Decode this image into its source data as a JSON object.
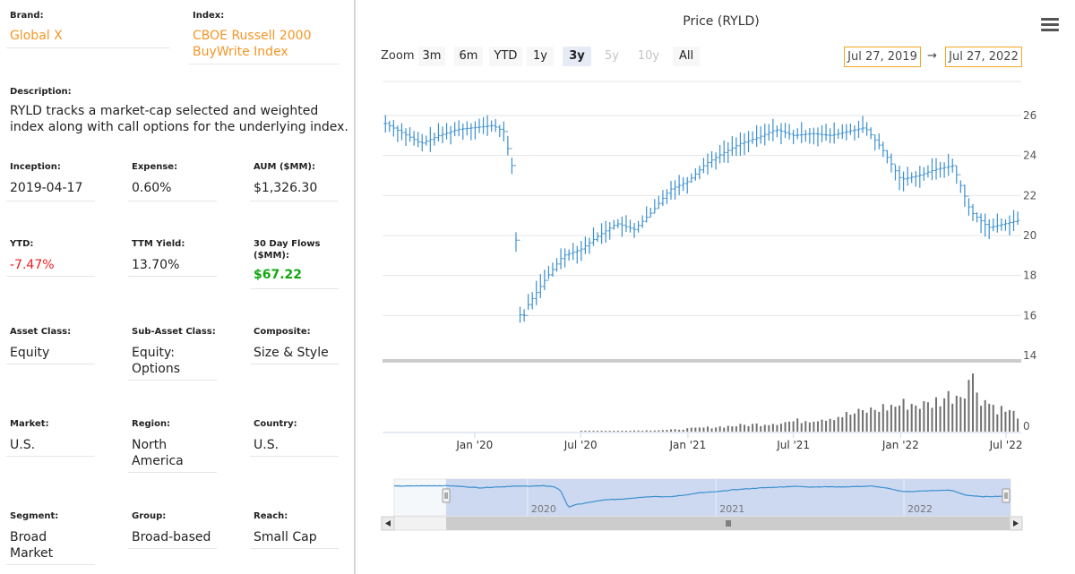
{
  "fund": {
    "brand": {
      "label": "Brand:",
      "value": "Global X"
    },
    "index": {
      "label": "Index:",
      "value_line1": "CBOE Russell 2000",
      "value_line2": "BuyWrite Index"
    },
    "description": {
      "label": "Description:",
      "line1": "RYLD tracks a market-cap selected and weighted",
      "line2": "index along with call options for the underlying index."
    },
    "inception": {
      "label": "Inception:",
      "value": "2019-04-17"
    },
    "expense": {
      "label": "Expense:",
      "value": "0.60%"
    },
    "aum": {
      "label": "AUM ($MM):",
      "value": "$1,326.30"
    },
    "ytd": {
      "label": "YTD:",
      "value": "-7.47%"
    },
    "ttm_yield": {
      "label": "TTM Yield:",
      "value": "13.70%"
    },
    "flows": {
      "label_line1": "30 Day Flows",
      "label_line2": "($MM):",
      "value": "$67.22"
    },
    "asset_class": {
      "label": "Asset Class:",
      "value": "Equity"
    },
    "sub_asset_class": {
      "label": "Sub-Asset Class:",
      "value_line1": "Equity:",
      "value_line2": "Options"
    },
    "composite": {
      "label": "Composite:",
      "value": "Size & Style"
    },
    "market": {
      "label": "Market:",
      "value": "U.S."
    },
    "region": {
      "label": "Region:",
      "value_line1": "North",
      "value_line2": "America"
    },
    "country": {
      "label": "Country:",
      "value": "U.S."
    },
    "segment": {
      "label": "Segment:",
      "value_line1": "Broad",
      "value_line2": "Market"
    },
    "group": {
      "label": "Group:",
      "value": "Broad-based"
    },
    "reach": {
      "label": "Reach:",
      "value": "Small Cap"
    }
  },
  "toolbar": {
    "zoom_label": "Zoom",
    "buttons": [
      {
        "label": "3m",
        "state": "normal"
      },
      {
        "label": "6m",
        "state": "normal"
      },
      {
        "label": "YTD",
        "state": "normal"
      },
      {
        "label": "1y",
        "state": "normal"
      },
      {
        "label": "3y",
        "state": "selected"
      },
      {
        "label": "5y",
        "state": "disabled"
      },
      {
        "label": "10y",
        "state": "disabled"
      },
      {
        "label": "All",
        "state": "normal"
      }
    ],
    "from_date": "Jul 27, 2019",
    "arrow": "→",
    "to_date": "Jul 27, 2022",
    "menu_icon": "hamburger-menu-icon"
  },
  "colors": {
    "price": "#3b8fcf",
    "volume": "#707070",
    "navigator_fill": "#c5d3ee",
    "navigator_line": "#3b8fcf",
    "orange": "#f59626",
    "red": "#ee1e1e",
    "green": "#11a811"
  },
  "chart_data": {
    "type": "line",
    "title": "Price (RYLD)",
    "price_axis": {
      "ticks": [
        14,
        16,
        18,
        20,
        22,
        24,
        26
      ],
      "range": [
        14,
        26.5
      ]
    },
    "volume_axis": {
      "ticks": [
        0
      ]
    },
    "x_ticks": [
      "Jan '20",
      "Jul '20",
      "Jan '21",
      "Jul '21",
      "Jan '22",
      "Jul '22"
    ],
    "navigator_labels": [
      "2020",
      "2021",
      "2022"
    ],
    "x_range": [
      "2019-07-27",
      "2022-07-27"
    ],
    "price_series": [
      [
        "2019-08-01",
        25.6
      ],
      [
        "2019-09-01",
        25.1
      ],
      [
        "2019-10-01",
        24.6
      ],
      [
        "2019-11-01",
        25.0
      ],
      [
        "2019-12-01",
        25.3
      ],
      [
        "2020-01-01",
        25.4
      ],
      [
        "2020-02-01",
        25.5
      ],
      [
        "2020-02-20",
        25.2
      ],
      [
        "2020-03-05",
        23.5
      ],
      [
        "2020-03-20",
        15.5
      ],
      [
        "2020-04-01",
        16.5
      ],
      [
        "2020-05-01",
        17.8
      ],
      [
        "2020-06-01",
        19.0
      ],
      [
        "2020-07-01",
        19.3
      ],
      [
        "2020-08-01",
        20.0
      ],
      [
        "2020-09-01",
        20.6
      ],
      [
        "2020-10-01",
        20.3
      ],
      [
        "2020-11-01",
        21.2
      ],
      [
        "2020-12-01",
        22.3
      ],
      [
        "2021-01-01",
        22.7
      ],
      [
        "2021-02-01",
        23.6
      ],
      [
        "2021-03-01",
        24.1
      ],
      [
        "2021-04-01",
        24.6
      ],
      [
        "2021-05-01",
        24.9
      ],
      [
        "2021-06-01",
        25.3
      ],
      [
        "2021-07-01",
        25.0
      ],
      [
        "2021-08-01",
        25.1
      ],
      [
        "2021-09-01",
        25.0
      ],
      [
        "2021-10-01",
        25.2
      ],
      [
        "2021-11-01",
        25.4
      ],
      [
        "2021-12-01",
        24.3
      ],
      [
        "2022-01-01",
        22.8
      ],
      [
        "2022-02-01",
        23.0
      ],
      [
        "2022-03-01",
        23.3
      ],
      [
        "2022-04-01",
        23.5
      ],
      [
        "2022-05-01",
        21.2
      ],
      [
        "2022-06-01",
        20.4
      ],
      [
        "2022-07-01",
        20.6
      ],
      [
        "2022-07-27",
        20.8
      ]
    ],
    "volume_series": [
      [
        "2019-08-01",
        0
      ],
      [
        "2020-06-01",
        0
      ],
      [
        "2020-12-01",
        0.03
      ],
      [
        "2021-01-15",
        0.06
      ],
      [
        "2021-03-01",
        0.09
      ],
      [
        "2021-05-01",
        0.13
      ],
      [
        "2021-07-01",
        0.18
      ],
      [
        "2021-09-01",
        0.25
      ],
      [
        "2021-10-15",
        0.32
      ],
      [
        "2021-12-01",
        0.42
      ],
      [
        "2022-01-15",
        0.5
      ],
      [
        "2022-02-15",
        0.46
      ],
      [
        "2022-03-15",
        0.6
      ],
      [
        "2022-04-15",
        0.7
      ],
      [
        "2022-05-01",
        1.0
      ],
      [
        "2022-05-20",
        0.6
      ],
      [
        "2022-06-15",
        0.42
      ],
      [
        "2022-07-20",
        0.3
      ]
    ]
  }
}
